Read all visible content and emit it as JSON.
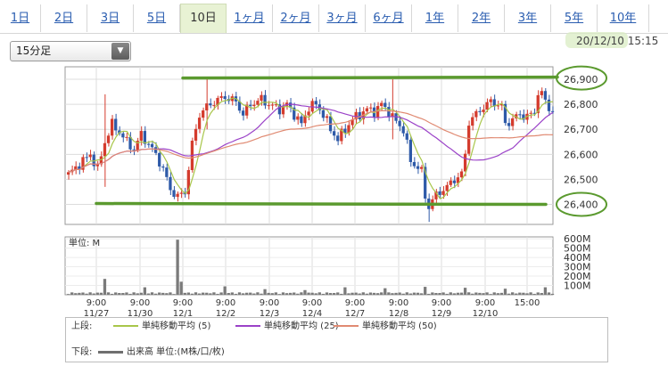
{
  "tabs": [
    {
      "label": "1日",
      "active": false
    },
    {
      "label": "2日",
      "active": false
    },
    {
      "label": "3日",
      "active": false
    },
    {
      "label": "5日",
      "active": false
    },
    {
      "label": "10日",
      "active": true
    },
    {
      "label": "1ヶ月",
      "active": false
    },
    {
      "label": "2ヶ月",
      "active": false
    },
    {
      "label": "3ヶ月",
      "active": false
    },
    {
      "label": "6ヶ月",
      "active": false
    },
    {
      "label": "1年",
      "active": false
    },
    {
      "label": "2年",
      "active": false
    },
    {
      "label": "3年",
      "active": false
    },
    {
      "label": "5年",
      "active": false
    },
    {
      "label": "10年",
      "active": false
    }
  ],
  "timeframe_select": {
    "value": "15分足"
  },
  "datetime": "20/12/10 15:15",
  "volume_unit_label": "単位: M",
  "legend": {
    "upper_label": "上段:",
    "lower_label": "下段:",
    "ma5": "単純移動平均 (5)",
    "ma25": "単純移動平均 (25)",
    "ma50": "単純移動平均 (50)",
    "volume": "出来高 単位:(M株/口/枚)"
  },
  "colors": {
    "up": "#d43b2d",
    "down": "#2e5aa8",
    "ma5": "#a8c64a",
    "ma25": "#9b42c8",
    "ma50": "#e08a72",
    "volume": "#7a7a7a",
    "annotation": "#5b9a2f",
    "active_tab": "#e8f2d4"
  },
  "chart_data": {
    "type": "line",
    "price_axis": {
      "ticks": [
        "26,900",
        "26,800",
        "26,700",
        "26,600",
        "26,500",
        "26,400"
      ],
      "range": [
        26320,
        26950
      ]
    },
    "volume_axis": {
      "ticks": [
        "600M",
        "500M",
        "400M",
        "300M",
        "200M",
        "100M"
      ],
      "range": [
        0,
        620
      ]
    },
    "x_labels": [
      {
        "time": "9:00",
        "date": "11/27"
      },
      {
        "time": "9:00",
        "date": "11/30"
      },
      {
        "time": "9:00",
        "date": "12/1"
      },
      {
        "time": "9:00",
        "date": "12/2"
      },
      {
        "time": "9:00",
        "date": "12/3"
      },
      {
        "time": "9:00",
        "date": "12/4"
      },
      {
        "time": "9:00",
        "date": "12/7"
      },
      {
        "time": "9:00",
        "date": "12/8"
      },
      {
        "time": "9:00",
        "date": "12/9"
      },
      {
        "time": "9:00",
        "date": "12/10"
      },
      {
        "time": "15:00",
        "date": ""
      }
    ],
    "close_keypoints": [
      [
        0,
        26520
      ],
      [
        3,
        26560
      ],
      [
        6,
        26600
      ],
      [
        8,
        26540
      ],
      [
        10,
        26650
      ],
      [
        12,
        26720
      ],
      [
        14,
        26690
      ],
      [
        16,
        26650
      ],
      [
        18,
        26620
      ],
      [
        20,
        26680
      ],
      [
        22,
        26640
      ],
      [
        24,
        26600
      ],
      [
        26,
        26540
      ],
      [
        28,
        26460
      ],
      [
        30,
        26430
      ],
      [
        32,
        26450
      ],
      [
        34,
        26640
      ],
      [
        36,
        26760
      ],
      [
        38,
        26790
      ],
      [
        40,
        26810
      ],
      [
        43,
        26830
      ],
      [
        46,
        26810
      ],
      [
        48,
        26760
      ],
      [
        50,
        26800
      ],
      [
        53,
        26820
      ],
      [
        55,
        26800
      ],
      [
        58,
        26780
      ],
      [
        60,
        26800
      ],
      [
        62,
        26760
      ],
      [
        64,
        26720
      ],
      [
        66,
        26790
      ],
      [
        68,
        26800
      ],
      [
        70,
        26760
      ],
      [
        72,
        26700
      ],
      [
        74,
        26660
      ],
      [
        76,
        26700
      ],
      [
        78,
        26740
      ],
      [
        80,
        26760
      ],
      [
        82,
        26780
      ],
      [
        84,
        26770
      ],
      [
        86,
        26800
      ],
      [
        88,
        26770
      ],
      [
        90,
        26730
      ],
      [
        92,
        26700
      ],
      [
        93,
        26640
      ],
      [
        94,
        26570
      ],
      [
        96,
        26550
      ],
      [
        97,
        26530
      ],
      [
        98,
        26430
      ],
      [
        99,
        26390
      ],
      [
        100,
        26420
      ],
      [
        102,
        26450
      ],
      [
        104,
        26470
      ],
      [
        106,
        26500
      ],
      [
        108,
        26520
      ],
      [
        109,
        26600
      ],
      [
        110,
        26730
      ],
      [
        112,
        26760
      ],
      [
        114,
        26790
      ],
      [
        116,
        26810
      ],
      [
        118,
        26800
      ],
      [
        119,
        26790
      ],
      [
        120,
        26720
      ],
      [
        122,
        26740
      ],
      [
        124,
        26760
      ],
      [
        126,
        26750
      ],
      [
        128,
        26770
      ],
      [
        129,
        26850
      ],
      [
        131,
        26820
      ],
      [
        132,
        26780
      ]
    ],
    "spikes": [
      {
        "bar": 10,
        "high": 26840,
        "low": 26470
      },
      {
        "bar": 38,
        "high": 26900,
        "low": 26700
      },
      {
        "bar": 89,
        "high": 26900,
        "low": 26660
      },
      {
        "bar": 99,
        "high": 26400,
        "low": 26330
      }
    ],
    "volume_big": [
      {
        "bar": 10,
        "value": 170
      },
      {
        "bar": 21,
        "value": 80
      },
      {
        "bar": 30,
        "value": 590
      },
      {
        "bar": 31,
        "value": 140
      },
      {
        "bar": 43,
        "value": 90
      },
      {
        "bar": 54,
        "value": 60
      },
      {
        "bar": 65,
        "value": 50
      },
      {
        "bar": 76,
        "value": 80
      },
      {
        "bar": 87,
        "value": 70
      },
      {
        "bar": 98,
        "value": 85
      },
      {
        "bar": 109,
        "value": 75
      },
      {
        "bar": 120,
        "value": 65
      },
      {
        "bar": 131,
        "value": 80
      }
    ],
    "annotations": {
      "upper_line": 26905,
      "lower_line": 26400,
      "circled_labels": [
        "26,900",
        "26,400"
      ]
    }
  }
}
